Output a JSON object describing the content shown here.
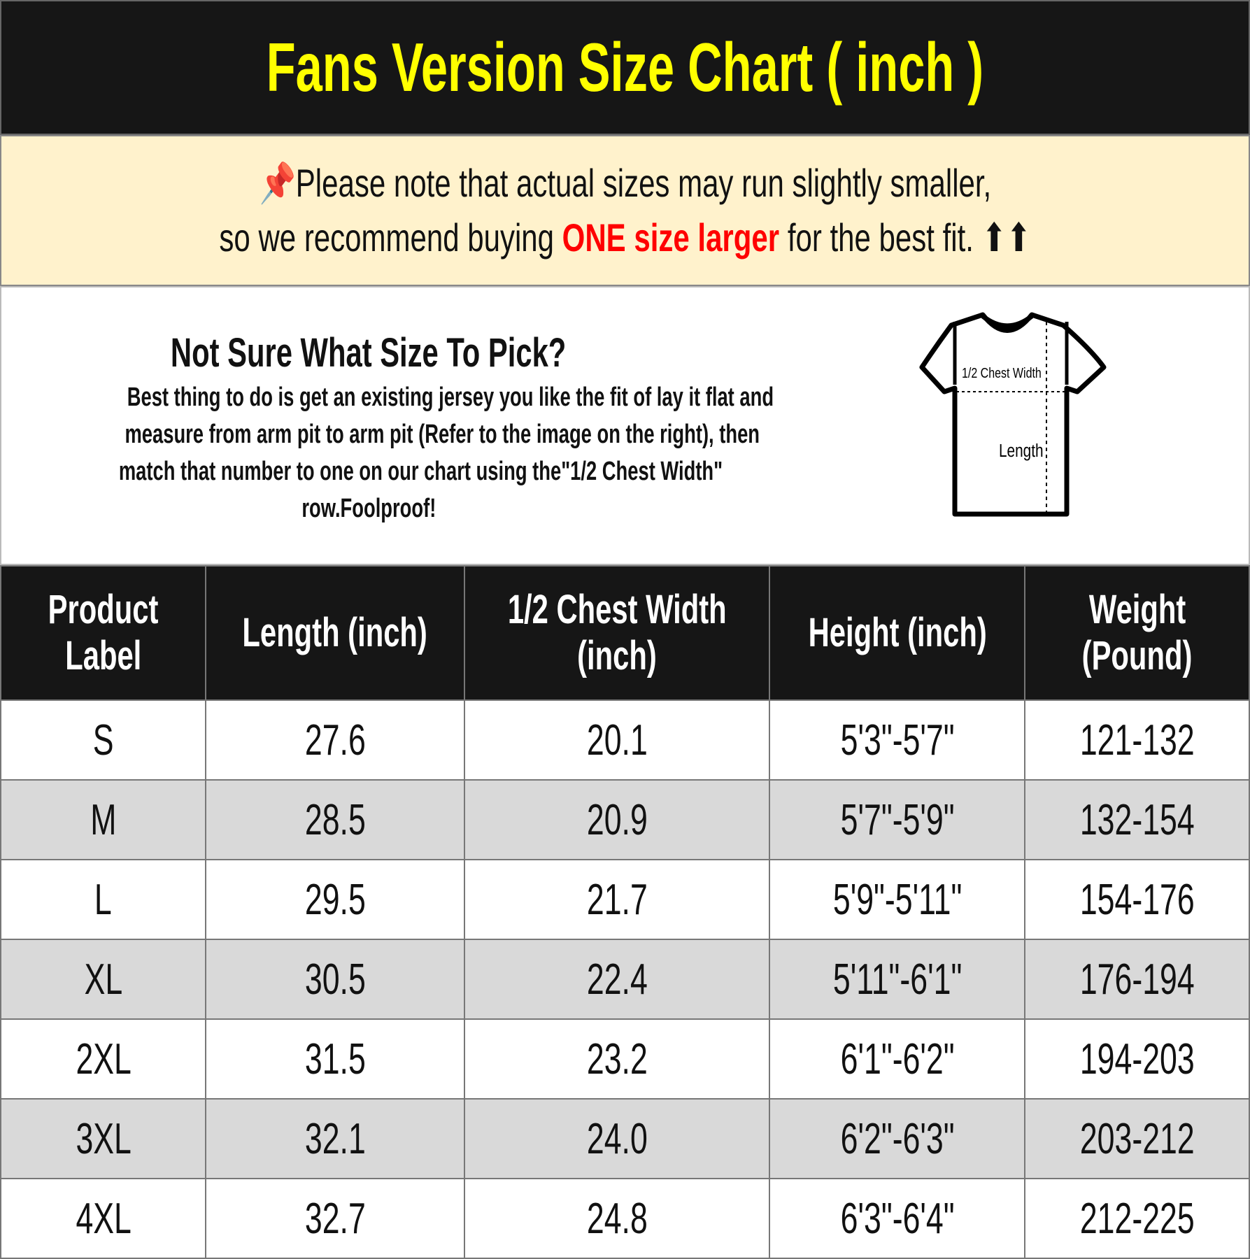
{
  "title": "Fans Version Size Chart ( inch )",
  "note": {
    "line1": "Please note that actual sizes may run slightly smaller,",
    "line2_pre": "so we recommend buying ",
    "line2_highlight": "ONE size larger",
    "line2_post": " for the best fit. ⬆⬆",
    "pin_icon": "pushpin-icon",
    "highlight_color": "#ff0000"
  },
  "info": {
    "title": "Not Sure What Size To Pick?",
    "lines": [
      "Best thing to do is get an existing jersey you like the fit of lay it flat and",
      "measure from arm pit to arm pit (Refer to the image on the right), then",
      "match that number to one on our chart using the\"1/2 Chest Width\"",
      "row.Foolproof!"
    ],
    "diagram": {
      "chest_label": "1/2 Chest Width",
      "length_label": "Length"
    }
  },
  "table": {
    "headers": [
      [
        "Product",
        "Label"
      ],
      [
        "Length (inch)"
      ],
      [
        "1/2 Chest Width",
        "(inch)"
      ],
      [
        "Height (inch)"
      ],
      [
        "Weight",
        "(Pound)"
      ]
    ],
    "rows": [
      [
        "S",
        "27.6",
        "20.1",
        "5'3\"-5'7\"",
        "121-132"
      ],
      [
        "M",
        "28.5",
        "20.9",
        "5'7\"-5'9\"",
        "132-154"
      ],
      [
        "L",
        "29.5",
        "21.7",
        "5'9\"-5'11\"",
        "154-176"
      ],
      [
        "XL",
        "30.5",
        "22.4",
        "5'11\"-6'1\"",
        "176-194"
      ],
      [
        "2XL",
        "31.5",
        "23.2",
        "6'1\"-6'2\"",
        "194-203"
      ],
      [
        "3XL",
        "32.1",
        "24.0",
        "6'2\"-6'3\"",
        "203-212"
      ],
      [
        "4XL",
        "32.7",
        "24.8",
        "6'3\"-6'4\"",
        "212-225"
      ]
    ]
  },
  "colors": {
    "title": "#ffff00",
    "header_bg": "#161616",
    "note_bg": "#fff2cc",
    "alt_row": "#d9d9d9"
  }
}
